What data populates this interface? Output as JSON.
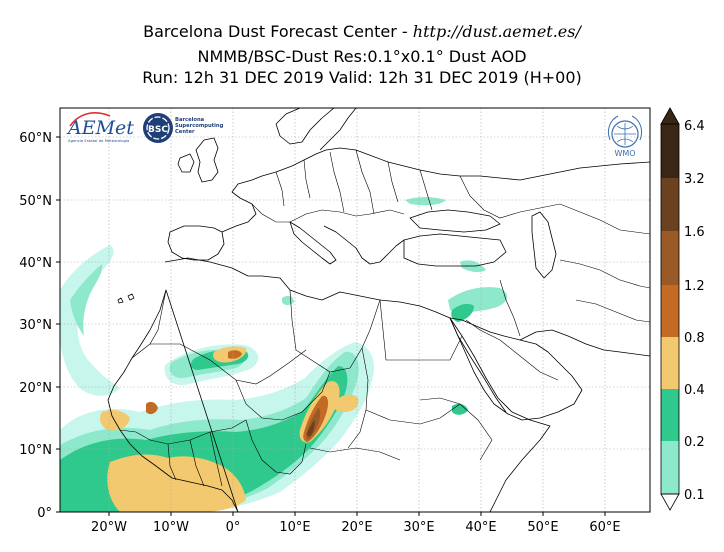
{
  "title": {
    "line1_prefix": "Barcelona Dust Forecast Center - ",
    "line1_url": "http://dust.aemet.es/",
    "line2": "NMMB/BSC-Dust   Res:0.1°x0.1°   Dust AOD",
    "line3": "Run: 12h 31 DEC 2019   Valid: 12h 31 DEC 2019 (H+00)"
  },
  "logos": {
    "aemet_text": "AEMet",
    "aemet_sub": "Agencia Estatal de Meteorología",
    "bsc_badge": "BSC",
    "bsc_text": "Barcelona Supercomputing Center",
    "wmo_text": "WMO"
  },
  "axes": {
    "lat_labels": [
      "60°N",
      "50°N",
      "40°N",
      "30°N",
      "20°N",
      "10°N",
      "0°"
    ],
    "lon_labels": [
      "20°W",
      "10°W",
      "0°",
      "10°E",
      "20°E",
      "30°E",
      "40°E",
      "50°E",
      "60°E"
    ],
    "lon_range": [
      -28,
      67
    ],
    "lat_range": [
      0,
      65
    ]
  },
  "colorbar": {
    "labels": [
      "6.4",
      "3.2",
      "1.6",
      "1.2",
      "0.8",
      "0.4",
      "0.2",
      "0.1"
    ],
    "colors": [
      "#3a2614",
      "#6b4220",
      "#9a5a28",
      "#c36a25",
      "#f2c96e",
      "#2fc98d",
      "#8ee8cc",
      "#c6f6ec"
    ]
  },
  "palette": {
    "level1": "#c6f6ec",
    "level2": "#8ee8cc",
    "level3": "#2fc98d",
    "level4": "#f2c96e",
    "level5": "#c36a25",
    "level6": "#9a5a28",
    "level7": "#6b4220",
    "border": "#000000",
    "grid": "#aaaaaa"
  }
}
